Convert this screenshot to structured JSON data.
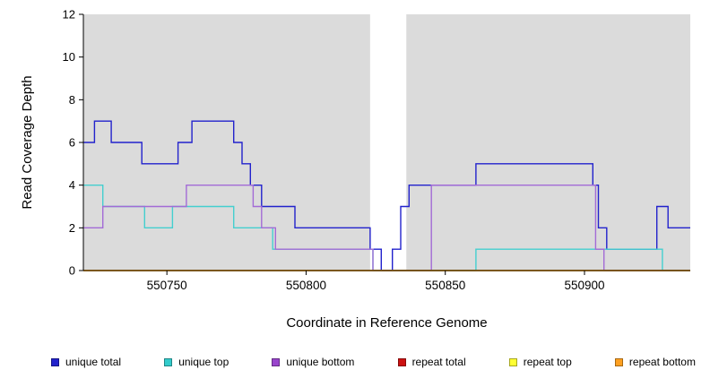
{
  "figure": {
    "ylabel": "Read Coverage Depth",
    "xlabel": "Coordinate in Reference Genome"
  },
  "legend": {
    "items": [
      {
        "label": "unique total",
        "color": "#2222CC"
      },
      {
        "label": "unique top",
        "color": "#33CCCC"
      },
      {
        "label": "unique bottom",
        "color": "#9944CC"
      },
      {
        "label": "repeat total",
        "color": "#CC1111"
      },
      {
        "label": "repeat top",
        "color": "#FFFF33"
      },
      {
        "label": "repeat bottom",
        "color": "#FFA020"
      }
    ]
  },
  "chart_data": {
    "type": "line",
    "step": true,
    "title": "",
    "xlabel": "Coordinate in Reference Genome",
    "ylabel": "Read Coverage Depth",
    "xlim": [
      550720,
      550938
    ],
    "ylim": [
      0,
      12
    ],
    "xticks": [
      550750,
      550800,
      550850,
      550900
    ],
    "yticks": [
      0,
      2,
      4,
      6,
      8,
      10,
      12
    ],
    "grid": false,
    "legend_position": "bottom",
    "plot_background": "#DBDBDB",
    "gap_band": {
      "x0": 550823,
      "x1": 550836,
      "color": "#FFFFFF"
    },
    "series": [
      {
        "name": "unique total",
        "color": "#2222CC",
        "points": [
          [
            550720,
            6
          ],
          [
            550724,
            7
          ],
          [
            550730,
            6
          ],
          [
            550741,
            5
          ],
          [
            550754,
            6
          ],
          [
            550759,
            7
          ],
          [
            550774,
            6
          ],
          [
            550777,
            5
          ],
          [
            550780,
            4
          ],
          [
            550784,
            3
          ],
          [
            550796,
            2
          ],
          [
            550823,
            1
          ],
          [
            550827,
            0
          ],
          [
            550831,
            1
          ],
          [
            550834,
            3
          ],
          [
            550837,
            4
          ],
          [
            550861,
            5
          ],
          [
            550903,
            4
          ],
          [
            550905,
            2
          ],
          [
            550908,
            1
          ],
          [
            550926,
            3
          ],
          [
            550930,
            2
          ],
          [
            550938,
            2
          ]
        ]
      },
      {
        "name": "unique top",
        "color": "#44CFCF",
        "points": [
          [
            550720,
            4
          ],
          [
            550727,
            3
          ],
          [
            550742,
            2
          ],
          [
            550752,
            3
          ],
          [
            550774,
            2
          ],
          [
            550788,
            1
          ],
          [
            550824,
            0
          ],
          [
            550861,
            1
          ],
          [
            550928,
            0
          ],
          [
            550938,
            0
          ]
        ]
      },
      {
        "name": "unique bottom",
        "color": "#A36BD6",
        "points": [
          [
            550720,
            2
          ],
          [
            550727,
            3
          ],
          [
            550757,
            4
          ],
          [
            550781,
            3
          ],
          [
            550784,
            2
          ],
          [
            550789,
            1
          ],
          [
            550824,
            0
          ],
          [
            550845,
            4
          ],
          [
            550904,
            1
          ],
          [
            550907,
            0
          ],
          [
            550938,
            0
          ]
        ]
      },
      {
        "name": "repeat total",
        "color": "#CC1111",
        "points": [
          [
            550720,
            0
          ],
          [
            550938,
            0
          ]
        ]
      },
      {
        "name": "repeat top",
        "color": "#FFFF33",
        "points": [
          [
            550720,
            0
          ],
          [
            550938,
            0
          ]
        ]
      },
      {
        "name": "repeat bottom",
        "color": "#FFA020",
        "points": [
          [
            550720,
            0
          ],
          [
            550938,
            0
          ]
        ]
      }
    ]
  }
}
